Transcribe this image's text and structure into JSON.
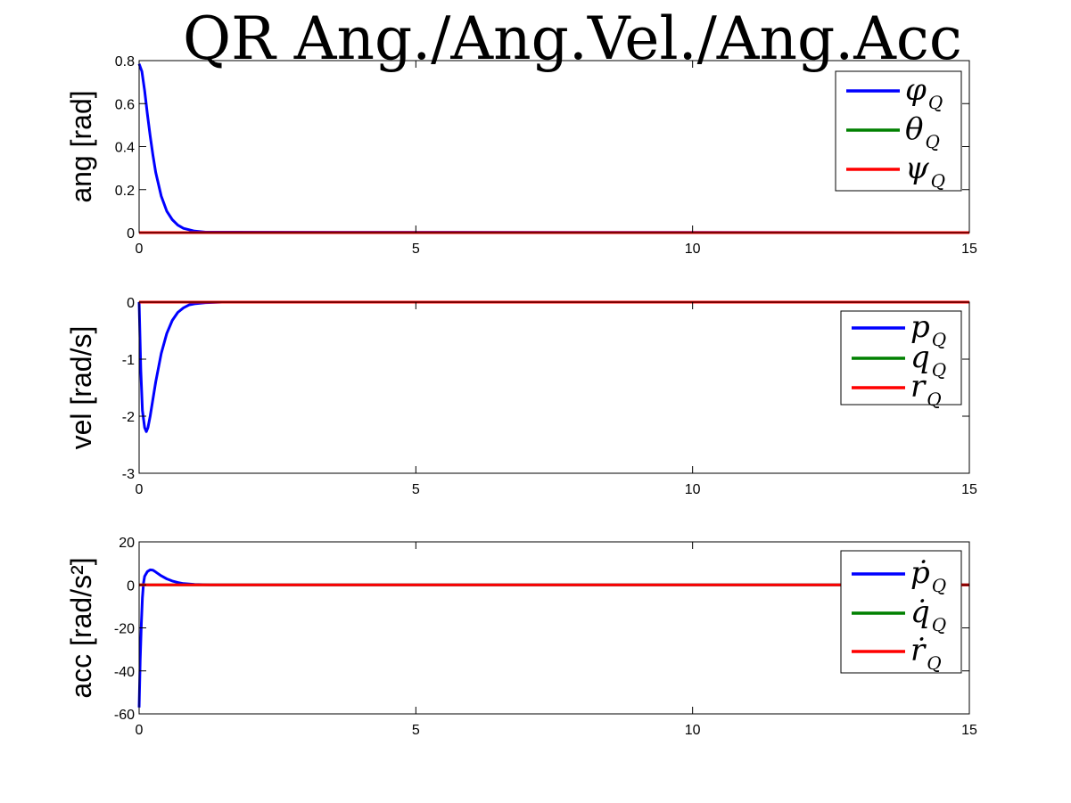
{
  "title": "QR Ang./Ang.Vel./Ang.Acc",
  "chart_data": [
    {
      "type": "line",
      "ylabel": "ang [rad]",
      "xlim": [
        0,
        15
      ],
      "ylim": [
        0,
        0.8
      ],
      "xticks": [
        "0",
        "5",
        "10",
        "15"
      ],
      "yticks": [
        "0",
        "0.2",
        "0.4",
        "0.6",
        "0.8"
      ],
      "grid": false,
      "legend": "top-right",
      "series": [
        {
          "name": "φ",
          "sub": "Q",
          "color": "#0000ff",
          "x": [
            0,
            0.05,
            0.1,
            0.15,
            0.2,
            0.25,
            0.3,
            0.4,
            0.5,
            0.6,
            0.7,
            0.8,
            1.0,
            1.2,
            15
          ],
          "y": [
            0.785,
            0.75,
            0.66,
            0.55,
            0.45,
            0.36,
            0.28,
            0.17,
            0.1,
            0.06,
            0.035,
            0.02,
            0.007,
            0.002,
            0
          ]
        },
        {
          "name": "θ",
          "sub": "Q",
          "color": "#008000",
          "x": [
            0,
            15
          ],
          "y": [
            0,
            0
          ]
        },
        {
          "name": "ψ",
          "sub": "Q",
          "color": "#ff0000",
          "x": [
            0,
            15
          ],
          "y": [
            0,
            0
          ]
        }
      ]
    },
    {
      "type": "line",
      "ylabel": "vel [rad/s]",
      "xlim": [
        0,
        15
      ],
      "ylim": [
        -3,
        0
      ],
      "xticks": [
        "0",
        "5",
        "10",
        "15"
      ],
      "yticks": [
        "-3",
        "-2",
        "-1",
        "0"
      ],
      "grid": false,
      "legend": "top-right",
      "series": [
        {
          "name": "p",
          "sub": "Q",
          "color": "#0000ff",
          "x": [
            0,
            0.03,
            0.06,
            0.1,
            0.13,
            0.16,
            0.2,
            0.25,
            0.3,
            0.4,
            0.5,
            0.6,
            0.7,
            0.8,
            0.9,
            1.0,
            1.2,
            1.5,
            15
          ],
          "y": [
            0,
            -1.2,
            -1.9,
            -2.2,
            -2.27,
            -2.2,
            -2.0,
            -1.7,
            -1.4,
            -0.9,
            -0.55,
            -0.32,
            -0.18,
            -0.1,
            -0.05,
            -0.03,
            -0.01,
            0,
            0
          ]
        },
        {
          "name": "q",
          "sub": "Q",
          "color": "#008000",
          "x": [
            0,
            15
          ],
          "y": [
            0,
            0
          ]
        },
        {
          "name": "r",
          "sub": "Q",
          "color": "#ff0000",
          "x": [
            0,
            15
          ],
          "y": [
            0,
            0
          ]
        }
      ]
    },
    {
      "type": "line",
      "ylabel": "acc [rad/s²]",
      "xlim": [
        0,
        15
      ],
      "ylim": [
        -60,
        20
      ],
      "xticks": [
        "0",
        "5",
        "10",
        "15"
      ],
      "yticks": [
        "-60",
        "-40",
        "-20",
        "0",
        "20"
      ],
      "grid": false,
      "legend": "top-right",
      "series": [
        {
          "name": "ṗ",
          "sub": "Q",
          "color": "#0000ff",
          "x": [
            0,
            0.02,
            0.04,
            0.06,
            0.08,
            0.1,
            0.15,
            0.2,
            0.25,
            0.3,
            0.4,
            0.5,
            0.6,
            0.7,
            0.8,
            1.0,
            1.3,
            15
          ],
          "y": [
            -57,
            -35,
            -18,
            -6,
            1,
            4,
            6.2,
            7,
            6.8,
            6,
            4.2,
            2.8,
            1.8,
            1.1,
            0.6,
            0.2,
            0,
            0
          ]
        },
        {
          "name": "q̇",
          "sub": "Q",
          "color": "#008000",
          "x": [
            0,
            15
          ],
          "y": [
            0,
            0
          ]
        },
        {
          "name": "ṙ",
          "sub": "Q",
          "color": "#ff0000",
          "x": [
            0,
            15
          ],
          "y": [
            0,
            0
          ]
        }
      ]
    }
  ]
}
